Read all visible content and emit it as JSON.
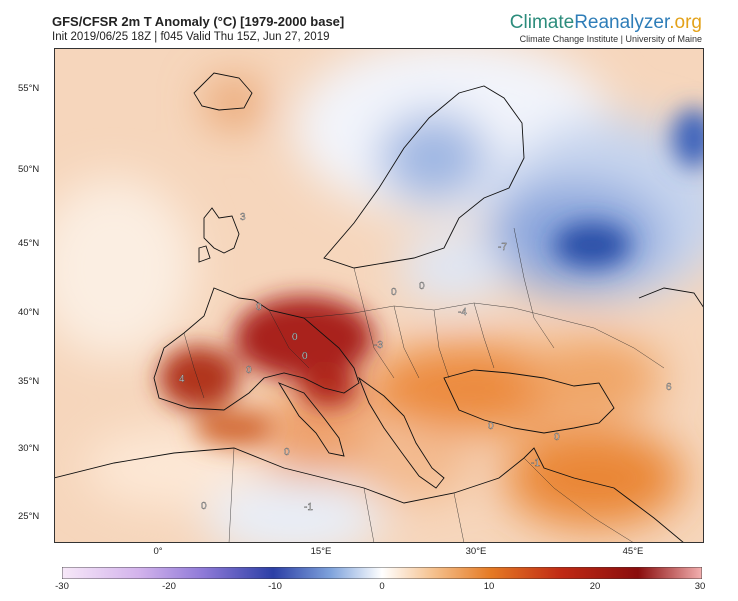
{
  "header": {
    "title": "GFS/CFSR 2m T Anomaly (°C) [1979-2000 base]",
    "subtitle": "Init 2019/06/25 18Z | f045 Valid Thu 15Z, Jun 27, 2019"
  },
  "brand": {
    "part1": "Climate",
    "part2": "Reanalyzer",
    "part3": ".org",
    "tagline": "Climate Change Institute | University of Maine"
  },
  "axes": {
    "lat_labels": [
      "55°N",
      "50°N",
      "45°N",
      "40°N",
      "35°N",
      "30°N",
      "25°N"
    ],
    "lon_labels": [
      "0°",
      "15°E",
      "30°E",
      "45°E"
    ]
  },
  "colorbar": {
    "ticks": [
      "-30",
      "-20",
      "-10",
      "0",
      "10",
      "20",
      "30"
    ],
    "min": -30,
    "max": 30
  },
  "map_values": [
    "4",
    "0",
    "0",
    "0",
    "3",
    "0",
    "-7",
    "-3",
    "0",
    "-4",
    "0",
    "0",
    "0",
    "-1",
    "6",
    "-1",
    "0",
    "0"
  ],
  "colors": {
    "cold": "#3a5fb8",
    "neutral": "#ffffff",
    "warm": "#e07a2a",
    "hot": "#b01010"
  }
}
